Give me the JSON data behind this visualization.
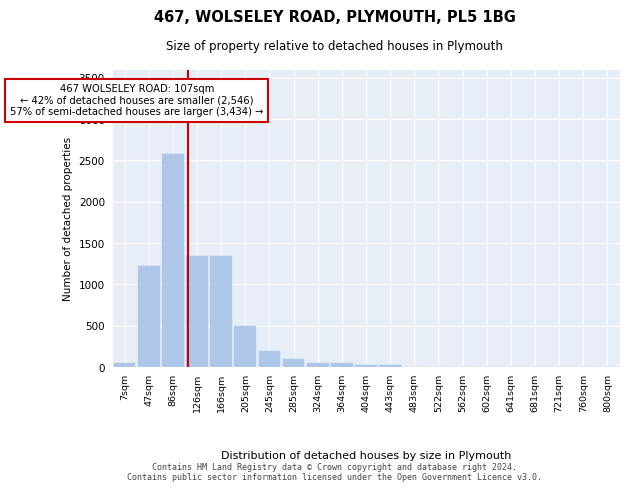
{
  "title": "467, WOLSELEY ROAD, PLYMOUTH, PL5 1BG",
  "subtitle": "Size of property relative to detached houses in Plymouth",
  "xlabel": "Distribution of detached houses by size in Plymouth",
  "ylabel": "Number of detached properties",
  "bin_labels": [
    "7sqm",
    "47sqm",
    "86sqm",
    "126sqm",
    "166sqm",
    "205sqm",
    "245sqm",
    "285sqm",
    "324sqm",
    "364sqm",
    "404sqm",
    "443sqm",
    "483sqm",
    "522sqm",
    "562sqm",
    "602sqm",
    "641sqm",
    "681sqm",
    "721sqm",
    "760sqm",
    "800sqm"
  ],
  "bin_values": [
    50,
    1225,
    2580,
    1340,
    1340,
    500,
    190,
    100,
    50,
    50,
    30,
    30,
    0,
    0,
    0,
    0,
    0,
    0,
    0,
    0,
    0
  ],
  "bar_color": "#aec6e8",
  "bar_edgecolor": "#aec6e8",
  "vline_x": 2.62,
  "vline_color": "#cc0000",
  "annotation_text": "467 WOLSELEY ROAD: 107sqm\n← 42% of detached houses are smaller (2,546)\n57% of semi-detached houses are larger (3,434) →",
  "annotation_box_edgecolor": "#cc0000",
  "annotation_box_facecolor": "#ffffff",
  "ylim": [
    0,
    3600
  ],
  "yticks": [
    0,
    500,
    1000,
    1500,
    2000,
    2500,
    3000,
    3500
  ],
  "background_color": "#e8eef8",
  "grid_color": "#ffffff",
  "footer_line1": "Contains HM Land Registry data © Crown copyright and database right 2024.",
  "footer_line2": "Contains public sector information licensed under the Open Government Licence v3.0."
}
